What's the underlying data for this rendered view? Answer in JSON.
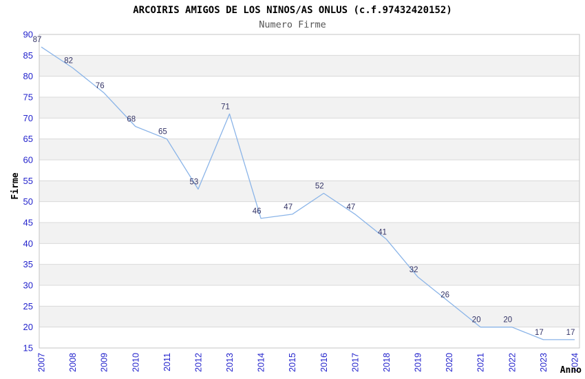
{
  "header": {
    "title": "ARCOIRIS AMIGOS DE LOS NINOS/AS ONLUS (c.f.97432420152)",
    "subtitle": "Numero Firme"
  },
  "chart_data": {
    "type": "line",
    "title": "ARCOIRIS AMIGOS DE LOS NINOS/AS ONLUS (c.f.97432420152)",
    "subtitle": "Numero Firme",
    "xlabel": "Anno",
    "ylabel": "Firme",
    "categories": [
      "2007",
      "2008",
      "2009",
      "2010",
      "2011",
      "2012",
      "2013",
      "2014",
      "2015",
      "2016",
      "2017",
      "2018",
      "2019",
      "2020",
      "2021",
      "2022",
      "2023",
      "2024"
    ],
    "series": [
      {
        "name": "Numero Firme",
        "values": [
          87,
          82,
          76,
          68,
          65,
          53,
          71,
          46,
          47,
          52,
          47,
          41,
          32,
          26,
          20,
          20,
          17,
          17
        ]
      }
    ],
    "ylim": [
      15,
      90
    ],
    "ytick_step": 5,
    "yticks": [
      15,
      20,
      25,
      30,
      35,
      40,
      45,
      50,
      55,
      60,
      65,
      70,
      75,
      80,
      85,
      90
    ],
    "grid": "horizontal gridlines every 5 with alternating shaded bands",
    "legend": "none",
    "data_labels": "shown above-left of each point",
    "colors": {
      "line": "#8ab4e8",
      "tick_label": "#2222cc",
      "value_label": "#333366",
      "band_fill": "#f2f2f2",
      "gridline": "#d9d9d9",
      "plot_border": "#c4c4c4",
      "title": "#000000",
      "subtitle": "#555555",
      "background": "#ffffff"
    }
  }
}
